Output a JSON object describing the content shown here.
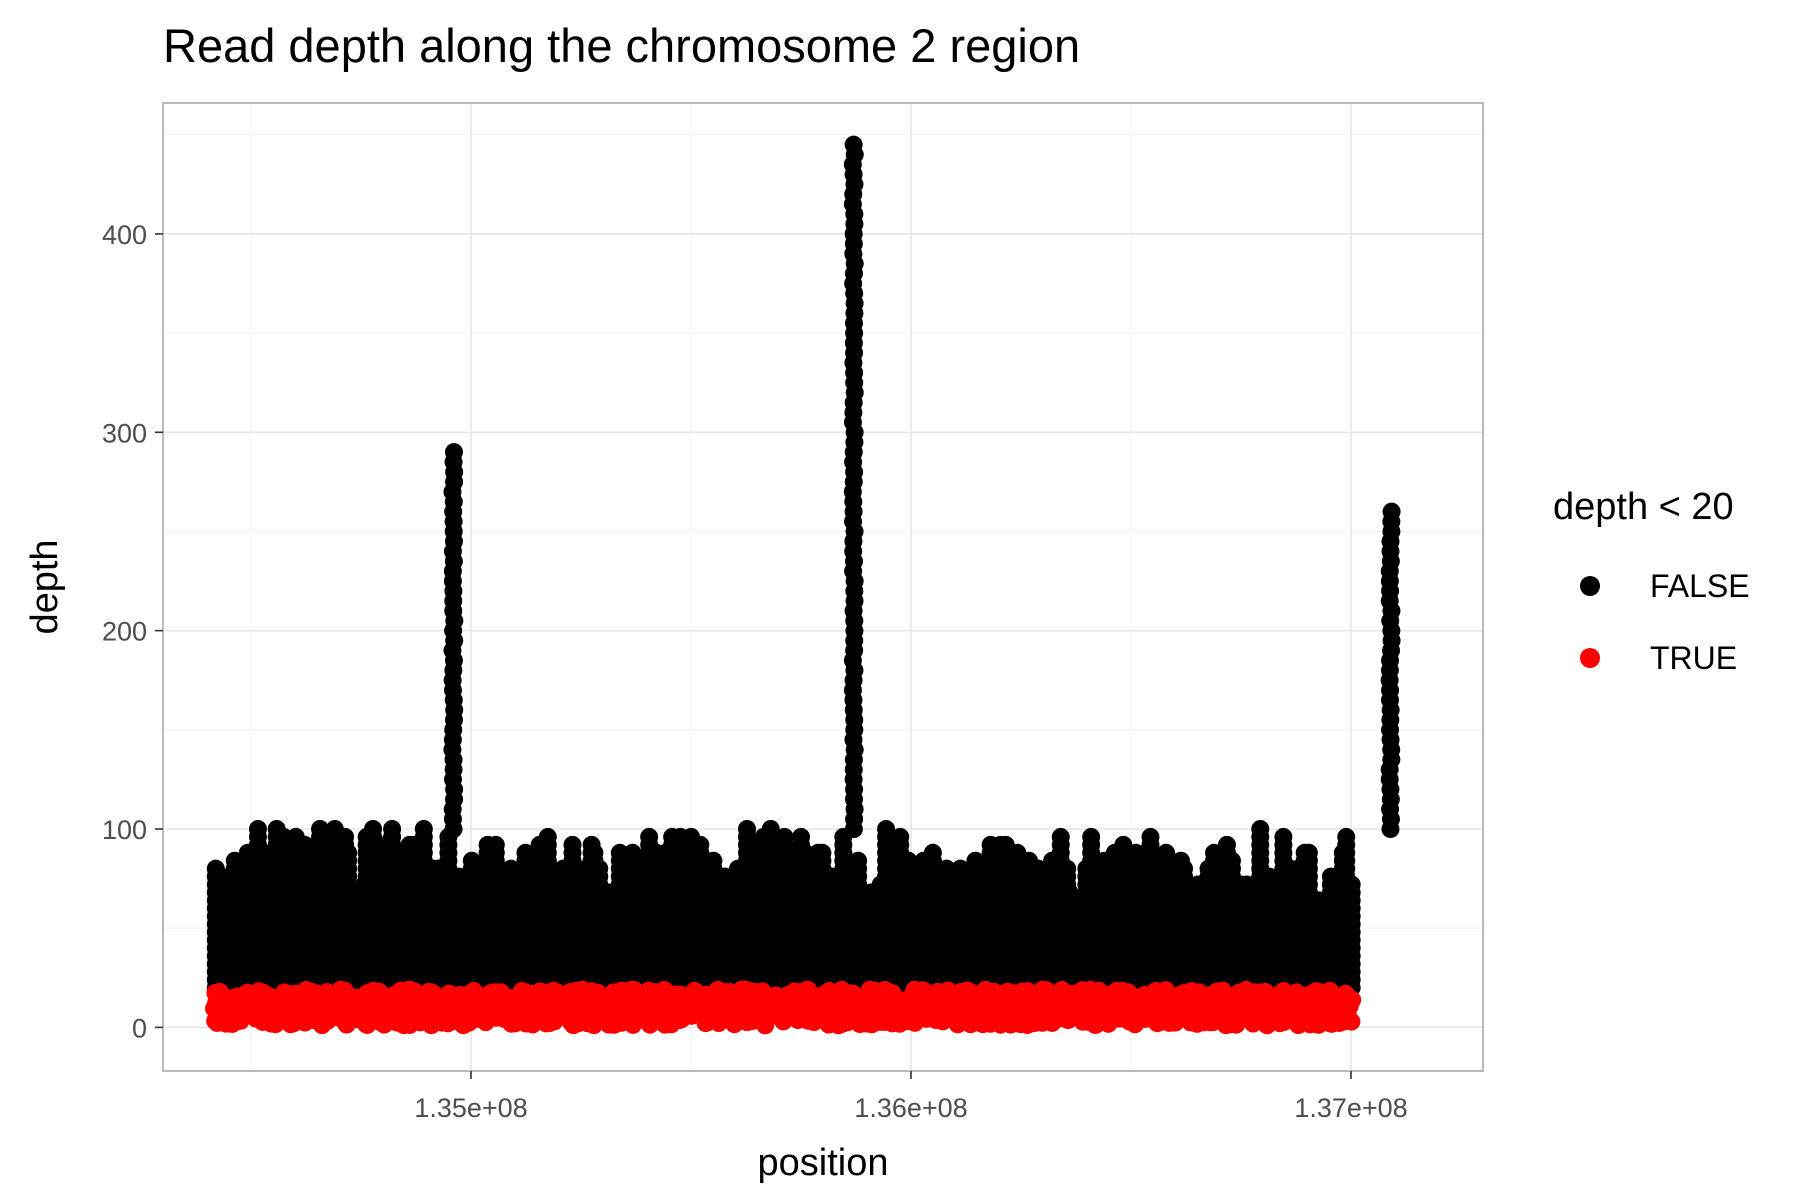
{
  "chart_data": {
    "type": "scatter",
    "title": "Read depth along the chromosome 2 region",
    "xlabel": "position",
    "ylabel": "depth",
    "xlim": [
      134300000,
      137300000
    ],
    "ylim": [
      -22,
      466
    ],
    "x_ticks": [
      135000000,
      136000000,
      137000000
    ],
    "x_tick_labels": [
      "1.35e+08",
      "1.36e+08",
      "1.37e+08"
    ],
    "y_ticks": [
      0,
      100,
      200,
      300,
      400
    ],
    "y_tick_labels": [
      "0",
      "100",
      "200",
      "300",
      "400"
    ],
    "grid": true,
    "legend": {
      "title": "depth < 20",
      "placement": "right",
      "items": [
        {
          "label": "FALSE",
          "color": "#000000"
        },
        {
          "label": "TRUE",
          "color": "#ff0000"
        }
      ]
    },
    "x_range_data": [
      134420000,
      137000000
    ],
    "series": [
      {
        "name": "FALSE",
        "color": "#000000",
        "value_range": [
          20,
          100
        ],
        "peaks": [
          {
            "x": 134960000,
            "y": 291
          },
          {
            "x": 135870000,
            "y": 445
          },
          {
            "x": 137090000,
            "y": 261
          }
        ]
      },
      {
        "name": "TRUE",
        "color": "#ff0000",
        "value_range": [
          0,
          19
        ]
      }
    ]
  }
}
